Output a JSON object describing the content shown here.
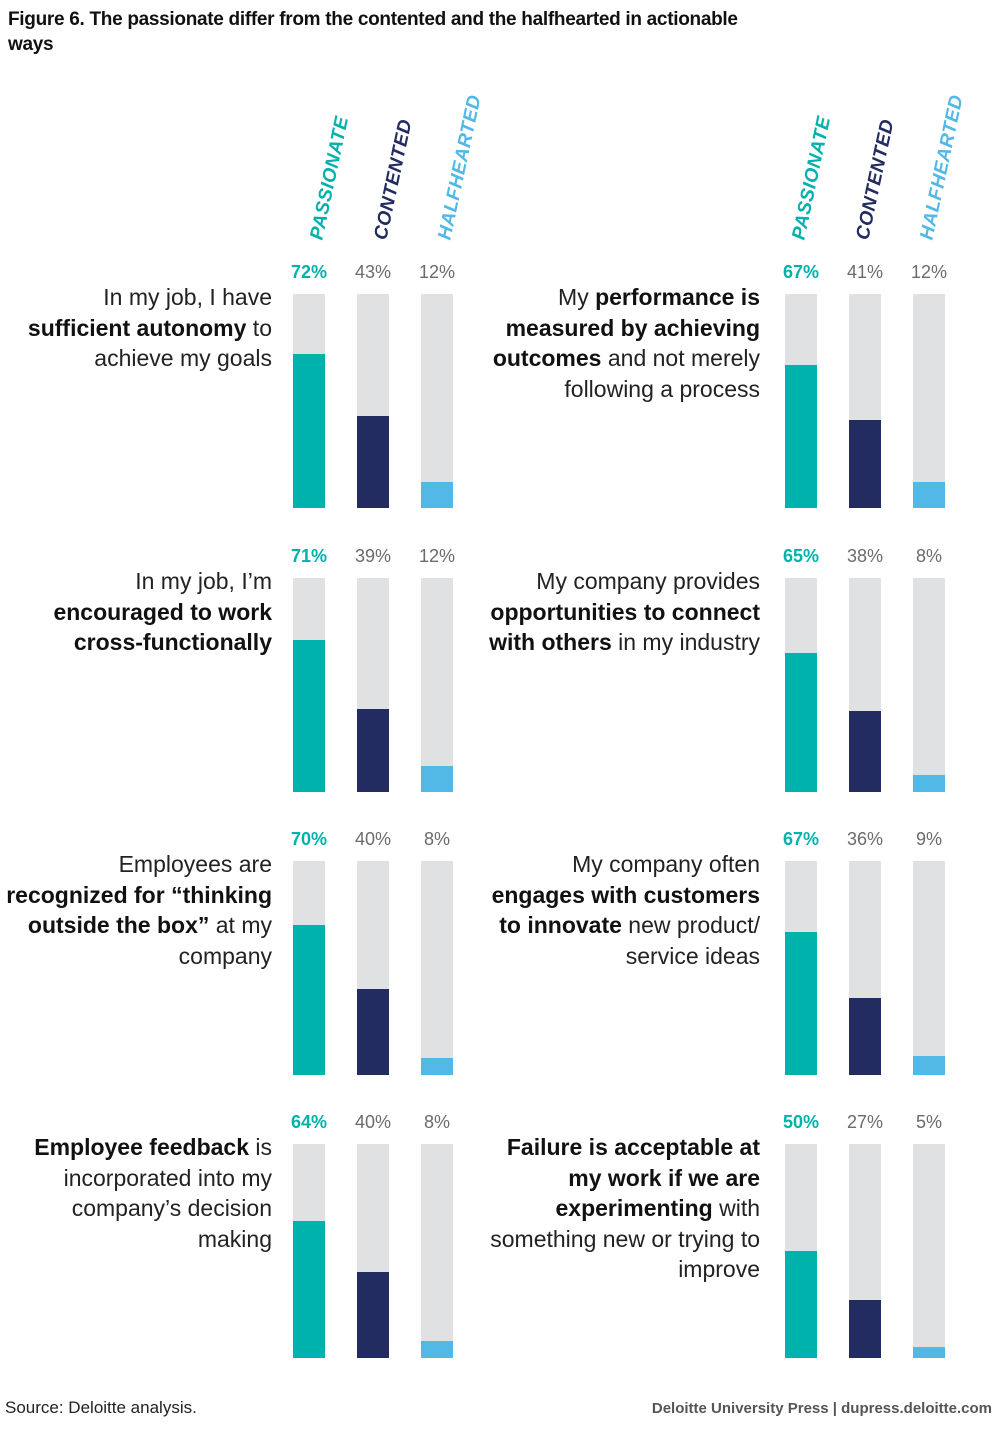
{
  "title": "Figure 6. The passionate differ from the contented and the halfhearted in actionable ways",
  "chart_data": {
    "type": "bar",
    "title": "Figure 6. The passionate differ from the contented and the halfhearted in actionable ways",
    "orientation": "vertical",
    "ylim": [
      0,
      100
    ],
    "unit": "%",
    "series_names": [
      "PASSIONATE",
      "CONTENTED",
      "HALFHEARTED"
    ],
    "series_colors": [
      "#00b2ac",
      "#222c60",
      "#52b8e6"
    ],
    "track_color": "#e0e1e3",
    "panels": [
      {
        "statement": [
          [
            "n",
            "In my job, I have "
          ],
          [
            "b",
            "sufficient autonomy"
          ],
          [
            "n",
            " to achieve my goals"
          ]
        ],
        "values": [
          72,
          43,
          12
        ],
        "labels": [
          "72%",
          "43%",
          "12%"
        ]
      },
      {
        "statement": [
          [
            "n",
            "My "
          ],
          [
            "b",
            "performance is measured by achieving outcomes"
          ],
          [
            "n",
            " and not merely following a process"
          ]
        ],
        "values": [
          67,
          41,
          12
        ],
        "labels": [
          "67%",
          "41%",
          "12%"
        ]
      },
      {
        "statement": [
          [
            "n",
            "In my job, I’m "
          ],
          [
            "b",
            "encouraged to work cross-functionally"
          ]
        ],
        "values": [
          71,
          39,
          12
        ],
        "labels": [
          "71%",
          "39%",
          "12%"
        ]
      },
      {
        "statement": [
          [
            "n",
            "My company provides "
          ],
          [
            "b",
            "opportunities to connect with others"
          ],
          [
            "n",
            " in my industry"
          ]
        ],
        "values": [
          65,
          38,
          8
        ],
        "labels": [
          "65%",
          "38%",
          "8%"
        ]
      },
      {
        "statement": [
          [
            "n",
            "Employees are "
          ],
          [
            "b",
            "recognized for “thinking outside the box”"
          ],
          [
            "n",
            " at my company"
          ]
        ],
        "values": [
          70,
          40,
          8
        ],
        "labels": [
          "70%",
          "40%",
          "8%"
        ]
      },
      {
        "statement": [
          [
            "n",
            "My company often "
          ],
          [
            "b",
            "engages with customers to innovate"
          ],
          [
            "n",
            " new product/ service ideas"
          ]
        ],
        "values": [
          67,
          36,
          9
        ],
        "labels": [
          "67%",
          "36%",
          "9%"
        ]
      },
      {
        "statement": [
          [
            "b",
            "Employee feedback"
          ],
          [
            "n",
            " is incorporated into my company’s decision making"
          ]
        ],
        "values": [
          64,
          40,
          8
        ],
        "labels": [
          "64%",
          "40%",
          "8%"
        ]
      },
      {
        "statement": [
          [
            "b",
            "Failure is acceptable at my work if we are experimenting"
          ],
          [
            "n",
            " with something new or trying to improve"
          ]
        ],
        "values": [
          50,
          27,
          5
        ],
        "labels": [
          "50%",
          "27%",
          "5%"
        ]
      }
    ]
  },
  "footer": {
    "source": "Source: Deloitte analysis.",
    "credit": "Deloitte University Press  |  dupress.deloitte.com"
  }
}
